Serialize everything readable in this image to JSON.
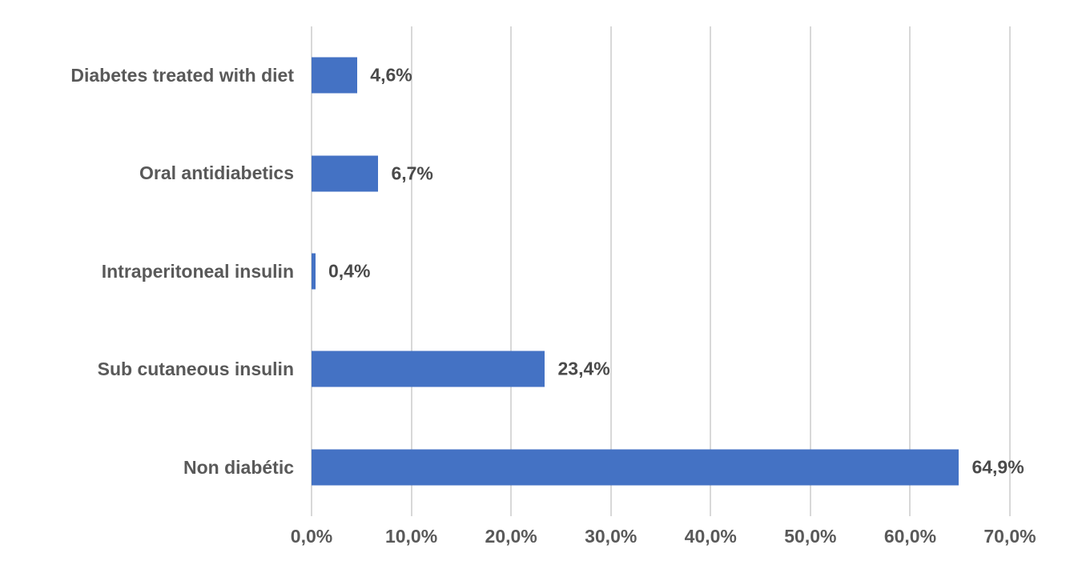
{
  "chart_data": {
    "type": "bar",
    "orientation": "horizontal",
    "title": "",
    "xlabel": "",
    "ylabel": "",
    "categories": [
      "Diabetes treated with diet",
      "Oral antidiabetics",
      "Intraperitoneal insulin",
      "Sub cutaneous insulin",
      "Non diabétic"
    ],
    "values": [
      4.6,
      6.7,
      0.4,
      23.4,
      64.9
    ],
    "value_labels": [
      "4,6%",
      "6,7%",
      "0,4%",
      "23,4%",
      "64,9%"
    ],
    "xlim": [
      0,
      70
    ],
    "x_ticks": [
      0,
      10,
      20,
      30,
      40,
      50,
      60,
      70
    ],
    "x_tick_labels": [
      "0,0%",
      "10,0%",
      "20,0%",
      "30,0%",
      "40,0%",
      "50,0%",
      "60,0%",
      "70,0%"
    ],
    "grid": true,
    "legend": false,
    "colors": {
      "bar": "#4472C4",
      "gridline": "#D8D8D8",
      "category_label": "#595959",
      "tick_label": "#595959",
      "value_label": "#4A4A4A",
      "background": "#FFFFFF"
    }
  }
}
